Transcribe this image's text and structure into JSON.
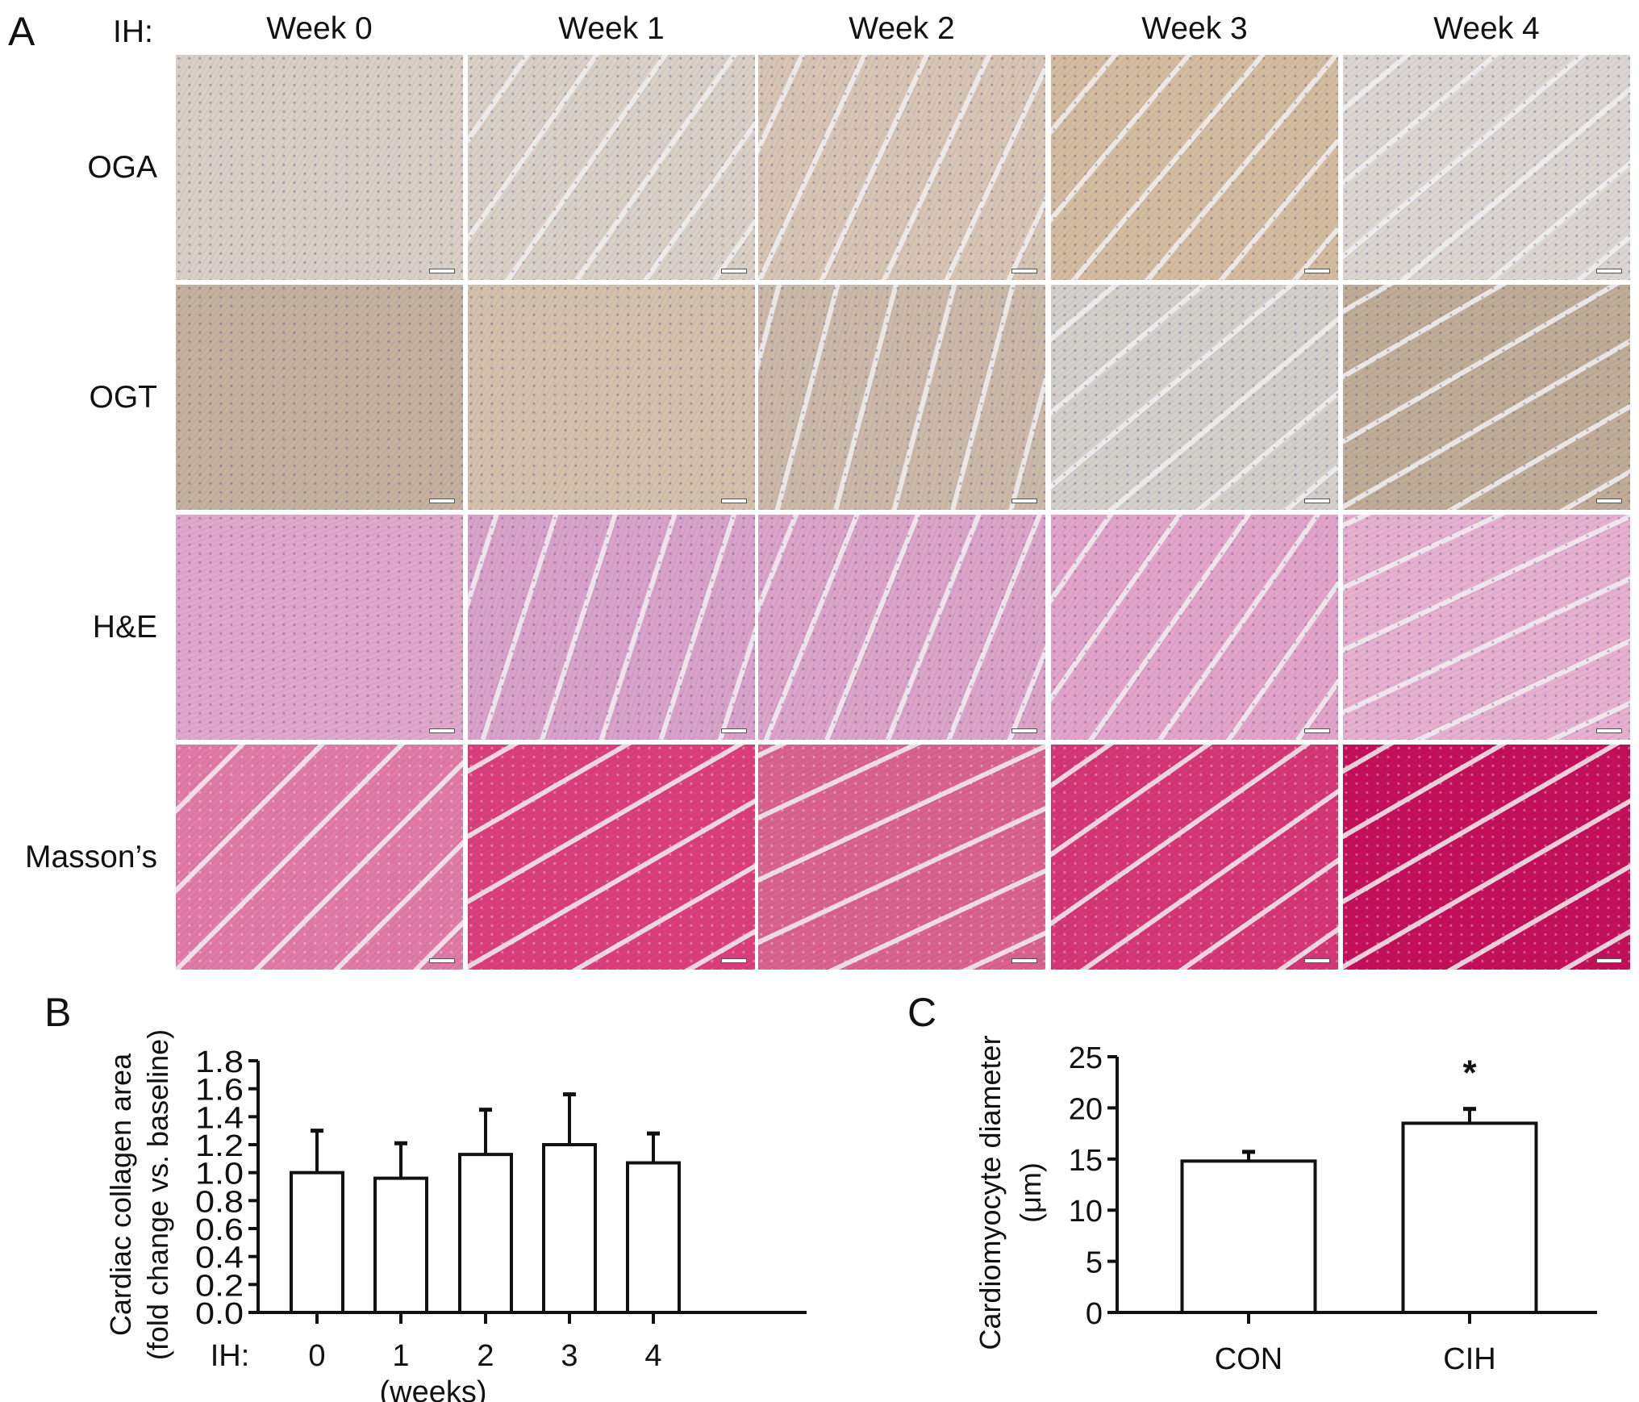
{
  "panel_a": {
    "letter": "A",
    "ih_label": "IH:",
    "columns": [
      "Week 0",
      "Week 1",
      "Week 2",
      "Week 3",
      "Week 4"
    ],
    "rows": [
      {
        "label": "OGA",
        "colors": [
          "#d8cfc6",
          "#d9d0c7",
          "#d7c6b4",
          "#d4bca0",
          "#dcd6d2"
        ]
      },
      {
        "label": "OGT",
        "colors": [
          "#c4b29e",
          "#d3c1ac",
          "#cbbaa8",
          "#d3d0cc",
          "#c0ad97"
        ]
      },
      {
        "label": "H&E",
        "colors": [
          "#e0a8cb",
          "#d9a2c9",
          "#dba4c8",
          "#e2a4c8",
          "#e6b0cf"
        ]
      },
      {
        "label": "Masson’s",
        "colors": [
          "#e07aa6",
          "#da3f7c",
          "#d9628f",
          "#d43676",
          "#c4105a"
        ]
      }
    ]
  },
  "chart_data": [
    {
      "type": "bar",
      "panel": "B",
      "ylabel_line1": "Cardiac collagen area",
      "ylabel_line2": "(fold change vs. baseline)",
      "x_prefix": "IH:",
      "xlabel": "(weeks)",
      "categories": [
        "0",
        "1",
        "2",
        "3",
        "4"
      ],
      "values": [
        1.0,
        0.96,
        1.13,
        1.2,
        1.07
      ],
      "error_upper": [
        1.3,
        1.21,
        1.45,
        1.56,
        1.28
      ],
      "ylim": [
        0,
        1.8
      ],
      "yticks": [
        "0.0",
        "0.2",
        "0.4",
        "0.6",
        "0.8",
        "1.0",
        "1.2",
        "1.4",
        "1.6",
        "1.8"
      ],
      "grid": false
    },
    {
      "type": "bar",
      "panel": "C",
      "ylabel_line1": "Cardiomyocyte diameter",
      "ylabel_line2": "(μm)",
      "categories": [
        "CON",
        "CIH"
      ],
      "values": [
        14.8,
        18.5
      ],
      "error_upper": [
        15.7,
        19.9
      ],
      "annotations": [
        "",
        "*"
      ],
      "ylim": [
        0,
        25
      ],
      "yticks": [
        "0",
        "5",
        "10",
        "15",
        "20",
        "25"
      ],
      "grid": false
    }
  ]
}
